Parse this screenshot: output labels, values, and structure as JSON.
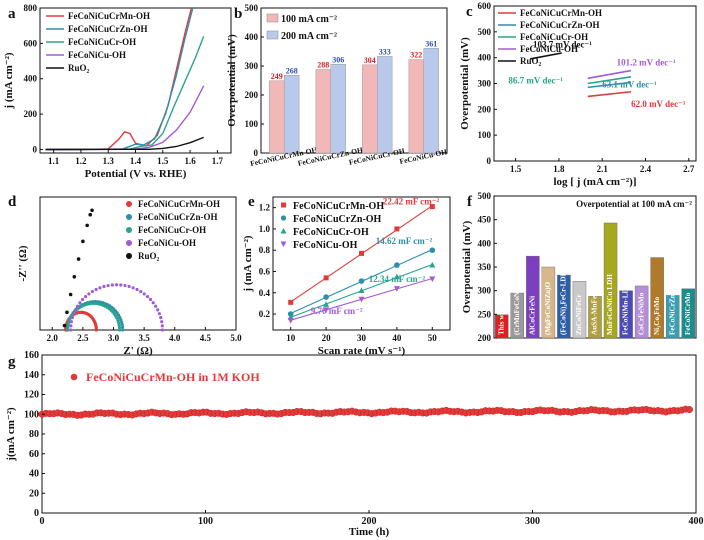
{
  "chart_data": [
    {
      "panel": "a",
      "type": "line",
      "xlabel": "Potential (V vs. RHE)",
      "ylabel": "j (mA cm⁻²)",
      "xlim": [
        1.05,
        1.75
      ],
      "ylim": [
        -20,
        800
      ],
      "xticks": [
        "1.1",
        "1.2",
        "1.3",
        "1.4",
        "1.5",
        "1.6",
        "1.7"
      ],
      "yticks": [
        "0",
        "200",
        "400",
        "600",
        "800"
      ],
      "legend": "top-left",
      "series": [
        {
          "name": "FeCoNiCuCrMn-OH",
          "color": "#e23a3a",
          "points": [
            [
              1.07,
              0
            ],
            [
              1.2,
              0
            ],
            [
              1.3,
              3
            ],
            [
              1.34,
              60
            ],
            [
              1.36,
              100
            ],
            [
              1.38,
              90
            ],
            [
              1.4,
              35
            ],
            [
              1.44,
              20
            ],
            [
              1.48,
              80
            ],
            [
              1.52,
              250
            ],
            [
              1.55,
              450
            ],
            [
              1.58,
              650
            ],
            [
              1.605,
              800
            ]
          ]
        },
        {
          "name": "FeCoNiCuCrZn-OH",
          "color": "#2e8fa8",
          "points": [
            [
              1.07,
              0
            ],
            [
              1.35,
              1
            ],
            [
              1.4,
              30
            ],
            [
              1.43,
              25
            ],
            [
              1.47,
              60
            ],
            [
              1.51,
              200
            ],
            [
              1.55,
              420
            ],
            [
              1.58,
              620
            ],
            [
              1.61,
              800
            ]
          ]
        },
        {
          "name": "FeCoNiCuCr-OH",
          "color": "#27a58a",
          "points": [
            [
              1.07,
              0
            ],
            [
              1.38,
              2
            ],
            [
              1.42,
              18
            ],
            [
              1.46,
              25
            ],
            [
              1.5,
              90
            ],
            [
              1.54,
              240
            ],
            [
              1.58,
              380
            ],
            [
              1.62,
              520
            ],
            [
              1.65,
              640
            ]
          ]
        },
        {
          "name": "FeCoNiCu-OH",
          "color": "#a25ad9",
          "points": [
            [
              1.07,
              0
            ],
            [
              1.4,
              2
            ],
            [
              1.45,
              12
            ],
            [
              1.5,
              40
            ],
            [
              1.55,
              110
            ],
            [
              1.6,
              210
            ],
            [
              1.65,
              360
            ]
          ]
        },
        {
          "name": "RuO₂",
          "color": "#111111",
          "points": [
            [
              1.07,
              0
            ],
            [
              1.45,
              1
            ],
            [
              1.5,
              6
            ],
            [
              1.55,
              17
            ],
            [
              1.6,
              38
            ],
            [
              1.65,
              68
            ]
          ]
        }
      ]
    },
    {
      "panel": "b",
      "type": "bar",
      "ylabel": "Overpotential (mV)",
      "ylim": [
        0,
        500
      ],
      "yticks": [
        "0",
        "100",
        "200",
        "300",
        "400",
        "500"
      ],
      "categories": [
        "FeCoNiCuCrMn-OH",
        "FeCoNiCuCrZn-OH",
        "FeCoNiCuCr-OH",
        "FeCoNiCu-OH"
      ],
      "series": [
        {
          "name": "100 mA cm⁻²",
          "color": "#f2b8b8",
          "label_color": "#d02020",
          "values": [
            249,
            288,
            304,
            322
          ]
        },
        {
          "name": "200 mA cm⁻²",
          "color": "#b9c9ec",
          "label_color": "#2a4fb0",
          "values": [
            268,
            306,
            333,
            361
          ]
        }
      ],
      "legend": "top-left"
    },
    {
      "panel": "c",
      "type": "line",
      "xlabel": "log [ j (mA cm⁻²)]",
      "ylabel": "Overpotential (mV)",
      "xlim": [
        1.35,
        2.75
      ],
      "ylim": [
        0,
        600
      ],
      "xticks": [
        "1.5",
        "1.8",
        "2.1",
        "2.4",
        "2.7"
      ],
      "yticks": [
        "0",
        "100",
        "200",
        "300",
        "400",
        "500",
        "600"
      ],
      "series": [
        {
          "name": "FeCoNiCuCrMn-OH",
          "color": "#e23a3a",
          "points": [
            [
              2.0,
              250
            ],
            [
              2.3,
              268
            ]
          ],
          "slope_label": "62.0 mV dec⁻¹"
        },
        {
          "name": "FeCoNiCuCrZn-OH",
          "color": "#2e8fa8",
          "points": [
            [
              2.0,
              285
            ],
            [
              2.3,
              304
            ]
          ],
          "slope_label": "63.1 mV dec⁻¹"
        },
        {
          "name": "FeCoNiCuCr-OH",
          "color": "#27a58a",
          "points": [
            [
              2.0,
              300
            ],
            [
              2.3,
              326
            ]
          ],
          "slope_label": "86.7 mV dec⁻¹"
        },
        {
          "name": "FeCoNiCu-OH",
          "color": "#a25ad9",
          "points": [
            [
              2.0,
              320
            ],
            [
              2.3,
              350
            ]
          ],
          "slope_label": "101.2 mV dec⁻¹"
        },
        {
          "name": "RuO₂",
          "color": "#111111",
          "points": [
            [
              1.6,
              395
            ],
            [
              1.82,
              418
            ]
          ],
          "slope_label": "103.7 mV dec⁻¹"
        }
      ]
    },
    {
      "panel": "d",
      "type": "scatter",
      "xlabel": "Z' (Ω)",
      "ylabel": "-Z'' (Ω)",
      "xlim": [
        1.8,
        5.0
      ],
      "ylim": [
        0,
        1.5
      ],
      "xticks": [
        "2.0",
        "2.5",
        "3.0",
        "3.5",
        "4.0",
        "4.5",
        "5.0"
      ],
      "series": [
        {
          "name": "FeCoNiCuCrMn-OH",
          "color": "#e23a3a",
          "arc": {
            "start": 2.22,
            "end": 2.72,
            "height": 0.2
          }
        },
        {
          "name": "FeCoNiCuCrZn-OH",
          "color": "#2e8fa8",
          "arc": {
            "start": 2.25,
            "end": 3.15,
            "height": 0.32
          }
        },
        {
          "name": "FeCoNiCuCr-OH",
          "color": "#27a58a",
          "arc": {
            "start": 2.25,
            "end": 3.1,
            "height": 0.3
          }
        },
        {
          "name": "FeCoNiCu-OH",
          "color": "#a25ad9",
          "arc": {
            "start": 2.3,
            "end": 3.8,
            "height": 0.51
          }
        },
        {
          "name": "RuO₂",
          "color": "#111111",
          "points": [
            [
              2.2,
              0.05
            ],
            [
              2.24,
              0.2
            ],
            [
              2.3,
              0.4
            ],
            [
              2.36,
              0.6
            ],
            [
              2.43,
              0.8
            ],
            [
              2.5,
              1.0
            ],
            [
              2.57,
              1.18
            ],
            [
              2.62,
              1.3
            ],
            [
              2.65,
              1.35
            ]
          ]
        }
      ]
    },
    {
      "panel": "e",
      "type": "scatter",
      "xlabel": "Scan rate (mV s⁻¹)",
      "ylabel": "j (mA cm⁻²)",
      "x": [
        10,
        20,
        30,
        40,
        50
      ],
      "xlim": [
        5,
        55
      ],
      "ylim": [
        0.05,
        1.3
      ],
      "xticks": [
        "10",
        "20",
        "30",
        "40",
        "50"
      ],
      "yticks": [
        "0.2",
        "0.4",
        "0.6",
        "0.8",
        "1.0",
        "1.2"
      ],
      "series": [
        {
          "name": "FeCoNiCuCrMn-OH",
          "color": "#e23a3a",
          "marker": "square",
          "values": [
            0.31,
            0.54,
            0.77,
            1.0,
            1.21
          ],
          "slope_label": "22.42 mF cm⁻²"
        },
        {
          "name": "FeCoNiCuCrZn-OH",
          "color": "#2e8fa8",
          "marker": "circle",
          "values": [
            0.2,
            0.36,
            0.51,
            0.66,
            0.8
          ],
          "slope_label": "14.62 mF cm⁻²"
        },
        {
          "name": "FeCoNiCuCr-OH",
          "color": "#27a58a",
          "marker": "triangle",
          "values": [
            0.17,
            0.29,
            0.42,
            0.55,
            0.66
          ],
          "slope_label": "12.34 mF cm⁻²"
        },
        {
          "name": "FeCoNiCu-OH",
          "color": "#a25ad9",
          "marker": "triangle-down",
          "values": [
            0.14,
            0.24,
            0.34,
            0.44,
            0.53
          ],
          "slope_label": "9.70 mF cm⁻²"
        }
      ]
    },
    {
      "panel": "f",
      "type": "bar",
      "title": "Overpotential at 100 mA cm⁻²",
      "ylabel": "Overpotential (mV)",
      "ylim": [
        200,
        500
      ],
      "yticks": [
        "200",
        "250",
        "300",
        "350",
        "400",
        "450",
        "500"
      ],
      "categories": [
        "This work",
        "(CrMnFeCoNi)Sₓ",
        "AlCoCrFeNi",
        "(MgFeCoNiZn)O",
        "(FeCoNi)₄FeCr-LDH",
        "ZnCoNiFeCr",
        "AuSA-MnFeCoNiCu LDH",
        "MnFeCoNiCu LDH",
        "FeCoNiMn-LDH",
        "CoCrFeNiMo",
        "Ni₃Co₃FeMo",
        "FeCoNiCrZn LDHs",
        "FeCoNiCrMo"
      ],
      "values": [
        249,
        295,
        373,
        350,
        333,
        320,
        288,
        443,
        300,
        310,
        370,
        290,
        304
      ],
      "colors": [
        "#e02020",
        "#9a9a9a",
        "#7b3fbf",
        "#d6b88c",
        "#2d5fa6",
        "#c9c9c9",
        "#b0a040",
        "#a8a820",
        "#4a4ab8",
        "#b48ed6",
        "#b07a2a",
        "#3aa0b0",
        "#1b8d8d"
      ]
    },
    {
      "panel": "g",
      "type": "scatter",
      "xlabel": "Time (h)",
      "ylabel": "j(mA cm⁻²)",
      "xlim": [
        0,
        400
      ],
      "ylim": [
        0,
        160
      ],
      "xticks": [
        "0",
        "100",
        "200",
        "300",
        "400"
      ],
      "yticks": [
        "0",
        "20",
        "40",
        "60",
        "80",
        "100",
        "120",
        "140",
        "160"
      ],
      "series": [
        {
          "name": "FeCoNiCuCrMn-OH in 1M KOH",
          "color": "#e23a3a",
          "level_start": 100,
          "level_end": 104
        }
      ]
    }
  ],
  "panel_labels": [
    "a",
    "b",
    "c",
    "d",
    "e",
    "f",
    "g"
  ]
}
